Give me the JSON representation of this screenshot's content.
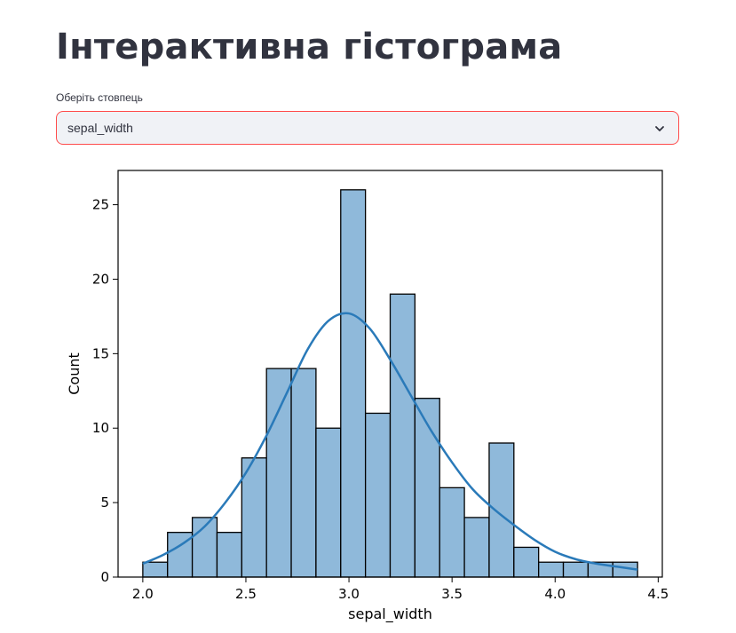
{
  "page": {
    "title": "Інтерактивна гістограма"
  },
  "select": {
    "label": "Оберіть стовпець",
    "value": "sepal_width"
  },
  "colors": {
    "bar_fill": "#8fb9da",
    "bar_edge": "#000000",
    "kde_line": "#2a7ab9",
    "select_border": "#ff4b4b",
    "select_bg": "#f0f2f6",
    "text": "#31333f"
  },
  "chart_data": {
    "type": "bar",
    "title": "",
    "xlabel": "sepal_width",
    "ylabel": "Count",
    "xlim": [
      1.88,
      4.52
    ],
    "ylim": [
      0,
      27.3
    ],
    "xticks": [
      2.0,
      2.5,
      3.0,
      3.5,
      4.0,
      4.5
    ],
    "xtick_labels": [
      "2.0",
      "2.5",
      "3.0",
      "3.5",
      "4.0",
      "4.5"
    ],
    "yticks": [
      0,
      5,
      10,
      15,
      20,
      25
    ],
    "ytick_labels": [
      "0",
      "5",
      "10",
      "15",
      "20",
      "25"
    ],
    "grid": false,
    "bins": {
      "start": 2.0,
      "width": 0.12,
      "counts": [
        1,
        3,
        4,
        3,
        8,
        14,
        14,
        10,
        26,
        11,
        19,
        12,
        6,
        4,
        9,
        2,
        1,
        1,
        1,
        1
      ]
    },
    "kde": {
      "x": [
        2.0,
        2.1,
        2.2,
        2.3,
        2.4,
        2.5,
        2.6,
        2.7,
        2.8,
        2.9,
        3.0,
        3.1,
        3.2,
        3.3,
        3.4,
        3.5,
        3.6,
        3.7,
        3.8,
        3.9,
        4.0,
        4.1,
        4.2,
        4.3,
        4.4
      ],
      "y": [
        0.9,
        1.5,
        2.3,
        3.4,
        5.0,
        7.0,
        9.5,
        12.4,
        15.3,
        17.2,
        17.7,
        16.7,
        14.6,
        12.2,
        9.8,
        7.7,
        5.9,
        4.6,
        3.5,
        2.5,
        1.7,
        1.2,
        0.9,
        0.7,
        0.5
      ]
    }
  }
}
